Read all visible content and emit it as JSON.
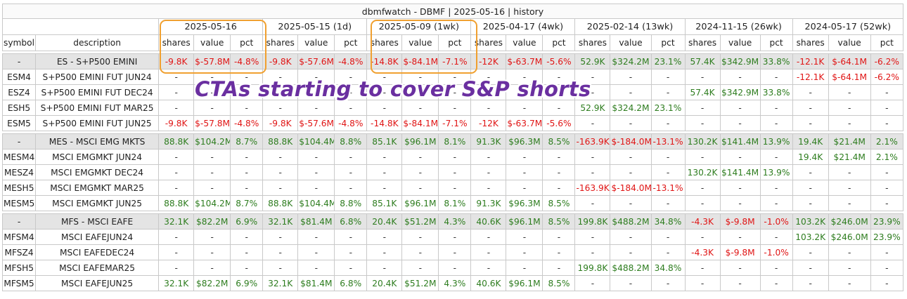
{
  "title": "dbmfwatch - DBMF | 2025-05-16 | history",
  "periods": [
    "2025-05-16",
    "2025-05-15 (1d)",
    "2025-05-09 (1wk)",
    "2025-04-17 (4wk)",
    "2025-02-14 (13wk)",
    "2024-11-15 (26wk)",
    "2024-05-17 (52wk)"
  ],
  "columns": {
    "symbol": "symbol",
    "description": "description",
    "sub": [
      "shares",
      "value",
      "pct"
    ]
  },
  "annotation": "CTAs starting to cover S&P shorts",
  "colors": {
    "positive": "#2e7d1f",
    "negative": "#e01515",
    "highlight_box": "#f0a030",
    "annotation": "#6a2fa0",
    "total_row_bg": "#e4e4e4"
  },
  "groups": [
    {
      "rows": [
        {
          "symbol": "-",
          "description": "ES - S+P500 EMINI",
          "total": true,
          "cells": [
            "-9.8K",
            "$-57.8M",
            "-4.8%",
            "-9.8K",
            "$-57.6M",
            "-4.8%",
            "-14.8K",
            "$-84.1M",
            "-7.1%",
            "-12K",
            "$-63.7M",
            "-5.6%",
            "52.9K",
            "$324.2M",
            "23.1%",
            "57.4K",
            "$342.9M",
            "33.8%",
            "-12.1K",
            "$-64.1M",
            "-6.2%"
          ]
        },
        {
          "symbol": "ESM4",
          "description": "S+P500 EMINI FUT JUN24",
          "cells": [
            "-",
            "-",
            "-",
            "-",
            "-",
            "-",
            "-",
            "-",
            "-",
            "-",
            "-",
            "-",
            "-",
            "-",
            "-",
            "-",
            "-",
            "-",
            "-12.1K",
            "$-64.1M",
            "-6.2%"
          ]
        },
        {
          "symbol": "ESZ4",
          "description": "S+P500 EMINI FUT DEC24",
          "cells": [
            "-",
            "-",
            "-",
            "-",
            "-",
            "-",
            "-",
            "-",
            "-",
            "-",
            "-",
            "-",
            "-",
            "-",
            "-",
            "57.4K",
            "$342.9M",
            "33.8%",
            "-",
            "-",
            "-"
          ]
        },
        {
          "symbol": "ESH5",
          "description": "S+P500 EMINI FUT MAR25",
          "cells": [
            "-",
            "-",
            "-",
            "-",
            "-",
            "-",
            "-",
            "-",
            "-",
            "-",
            "-",
            "-",
            "52.9K",
            "$324.2M",
            "23.1%",
            "-",
            "-",
            "-",
            "-",
            "-",
            "-"
          ]
        },
        {
          "symbol": "ESM5",
          "description": "S+P500 EMINI FUT JUN25",
          "cells": [
            "-9.8K",
            "$-57.8M",
            "-4.8%",
            "-9.8K",
            "$-57.6M",
            "-4.8%",
            "-14.8K",
            "$-84.1M",
            "-7.1%",
            "-12K",
            "$-63.7M",
            "-5.6%",
            "-",
            "-",
            "-",
            "-",
            "-",
            "-",
            "-",
            "-",
            "-"
          ]
        }
      ]
    },
    {
      "rows": [
        {
          "symbol": "-",
          "description": "MES - MSCI EMG MKTS",
          "total": true,
          "cells": [
            "88.8K",
            "$104.2M",
            "8.7%",
            "88.8K",
            "$104.4M",
            "8.8%",
            "85.1K",
            "$96.1M",
            "8.1%",
            "91.3K",
            "$96.3M",
            "8.5%",
            "-163.9K",
            "$-184.0M",
            "-13.1%",
            "130.2K",
            "$141.4M",
            "13.9%",
            "19.4K",
            "$21.4M",
            "2.1%"
          ]
        },
        {
          "symbol": "MESM4",
          "description": "MSCI EMGMKT JUN24",
          "cells": [
            "-",
            "-",
            "-",
            "-",
            "-",
            "-",
            "-",
            "-",
            "-",
            "-",
            "-",
            "-",
            "-",
            "-",
            "-",
            "-",
            "-",
            "-",
            "19.4K",
            "$21.4M",
            "2.1%"
          ]
        },
        {
          "symbol": "MESZ4",
          "description": "MSCI EMGMKT DEC24",
          "cells": [
            "-",
            "-",
            "-",
            "-",
            "-",
            "-",
            "-",
            "-",
            "-",
            "-",
            "-",
            "-",
            "-",
            "-",
            "-",
            "130.2K",
            "$141.4M",
            "13.9%",
            "-",
            "-",
            "-"
          ]
        },
        {
          "symbol": "MESH5",
          "description": "MSCI EMGMKT MAR25",
          "cells": [
            "-",
            "-",
            "-",
            "-",
            "-",
            "-",
            "-",
            "-",
            "-",
            "-",
            "-",
            "-",
            "-163.9K",
            "$-184.0M",
            "-13.1%",
            "-",
            "-",
            "-",
            "-",
            "-",
            "-"
          ]
        },
        {
          "symbol": "MESM5",
          "description": "MSCI EMGMKT JUN25",
          "cells": [
            "88.8K",
            "$104.2M",
            "8.7%",
            "88.8K",
            "$104.4M",
            "8.8%",
            "85.1K",
            "$96.1M",
            "8.1%",
            "91.3K",
            "$96.3M",
            "8.5%",
            "-",
            "-",
            "-",
            "-",
            "-",
            "-",
            "-",
            "-",
            "-"
          ]
        }
      ]
    },
    {
      "rows": [
        {
          "symbol": "-",
          "description": "MFS - MSCI EAFE",
          "total": true,
          "cells": [
            "32.1K",
            "$82.2M",
            "6.9%",
            "32.1K",
            "$81.4M",
            "6.8%",
            "20.4K",
            "$51.2M",
            "4.3%",
            "40.6K",
            "$96.1M",
            "8.5%",
            "199.8K",
            "$488.2M",
            "34.8%",
            "-4.3K",
            "$-9.8M",
            "-1.0%",
            "103.2K",
            "$246.0M",
            "23.9%"
          ]
        },
        {
          "symbol": "MFSM4",
          "description": "MSCI EAFEJUN24",
          "cells": [
            "-",
            "-",
            "-",
            "-",
            "-",
            "-",
            "-",
            "-",
            "-",
            "-",
            "-",
            "-",
            "-",
            "-",
            "-",
            "-",
            "-",
            "-",
            "103.2K",
            "$246.0M",
            "23.9%"
          ]
        },
        {
          "symbol": "MFSZ4",
          "description": "MSCI EAFEDEC24",
          "cells": [
            "-",
            "-",
            "-",
            "-",
            "-",
            "-",
            "-",
            "-",
            "-",
            "-",
            "-",
            "-",
            "-",
            "-",
            "-",
            "-4.3K",
            "$-9.8M",
            "-1.0%",
            "-",
            "-",
            "-"
          ]
        },
        {
          "symbol": "MFSH5",
          "description": "MSCI EAFEMAR25",
          "cells": [
            "-",
            "-",
            "-",
            "-",
            "-",
            "-",
            "-",
            "-",
            "-",
            "-",
            "-",
            "-",
            "199.8K",
            "$488.2M",
            "34.8%",
            "-",
            "-",
            "-",
            "-",
            "-",
            "-"
          ]
        },
        {
          "symbol": "MFSM5",
          "description": "MSCI EAFEJUN25",
          "cells": [
            "32.1K",
            "$82.2M",
            "6.9%",
            "32.1K",
            "$81.4M",
            "6.8%",
            "20.4K",
            "$51.2M",
            "4.3%",
            "40.6K",
            "$96.1M",
            "8.5%",
            "-",
            "-",
            "-",
            "-",
            "-",
            "-",
            "-",
            "-",
            "-"
          ]
        }
      ]
    }
  ]
}
